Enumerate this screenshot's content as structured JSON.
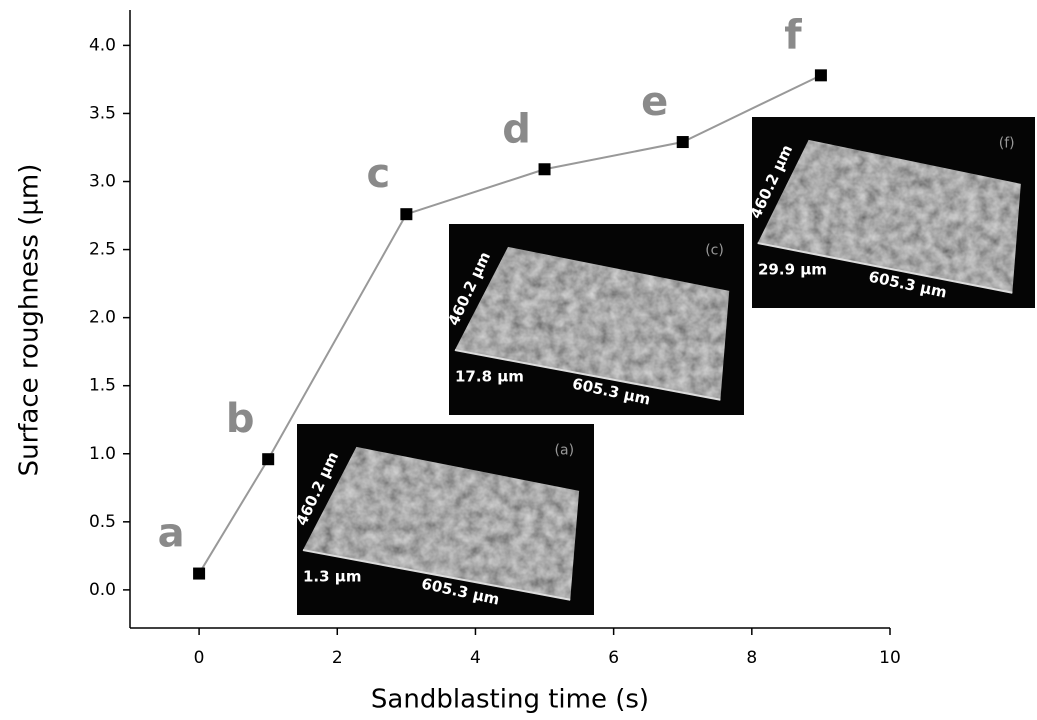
{
  "chart_data": {
    "type": "line",
    "x_label": "Sandblasting time (s)",
    "y_label": "Surface roughness (µm)",
    "x": [
      0,
      1,
      3,
      5,
      7,
      9
    ],
    "series": [
      {
        "values": [
          0.12,
          0.96,
          2.76,
          3.09,
          3.29,
          3.78
        ],
        "color": "#999999",
        "marker_color": "#000000"
      }
    ],
    "point_labels": [
      "a",
      "b",
      "c",
      "d",
      "e",
      "f"
    ],
    "point_label_color": "#8a8a8a",
    "xlim": [
      -1,
      10
    ],
    "xticks": [
      0,
      2,
      4,
      6,
      8,
      10
    ],
    "ylim": [
      -0.28,
      4.26
    ],
    "yticks": [
      {
        "value": 0,
        "label": "0.0"
      },
      {
        "value": 0.5,
        "label": "0.5"
      },
      {
        "value": 1,
        "label": "1.0"
      },
      {
        "value": 1.5,
        "label": "1.5"
      },
      {
        "value": 2,
        "label": "2.0"
      },
      {
        "value": 2.5,
        "label": "2.5"
      },
      {
        "value": 3,
        "label": "3.0"
      },
      {
        "value": 3.5,
        "label": "3.5"
      },
      {
        "value": 4,
        "label": "4.0"
      }
    ],
    "insets": [
      {
        "tag": "(a)",
        "width_label": "460.2 µm",
        "height_label": "1.3 µm",
        "length_label": "605.3 µm"
      },
      {
        "tag": "(c)",
        "width_label": "460.2 µm",
        "height_label": "17.8 µm",
        "length_label": "605.3 µm"
      },
      {
        "tag": "(f)",
        "width_label": "460.2 µm",
        "height_label": "29.9 µm",
        "length_label": "605.3 µm"
      }
    ]
  }
}
